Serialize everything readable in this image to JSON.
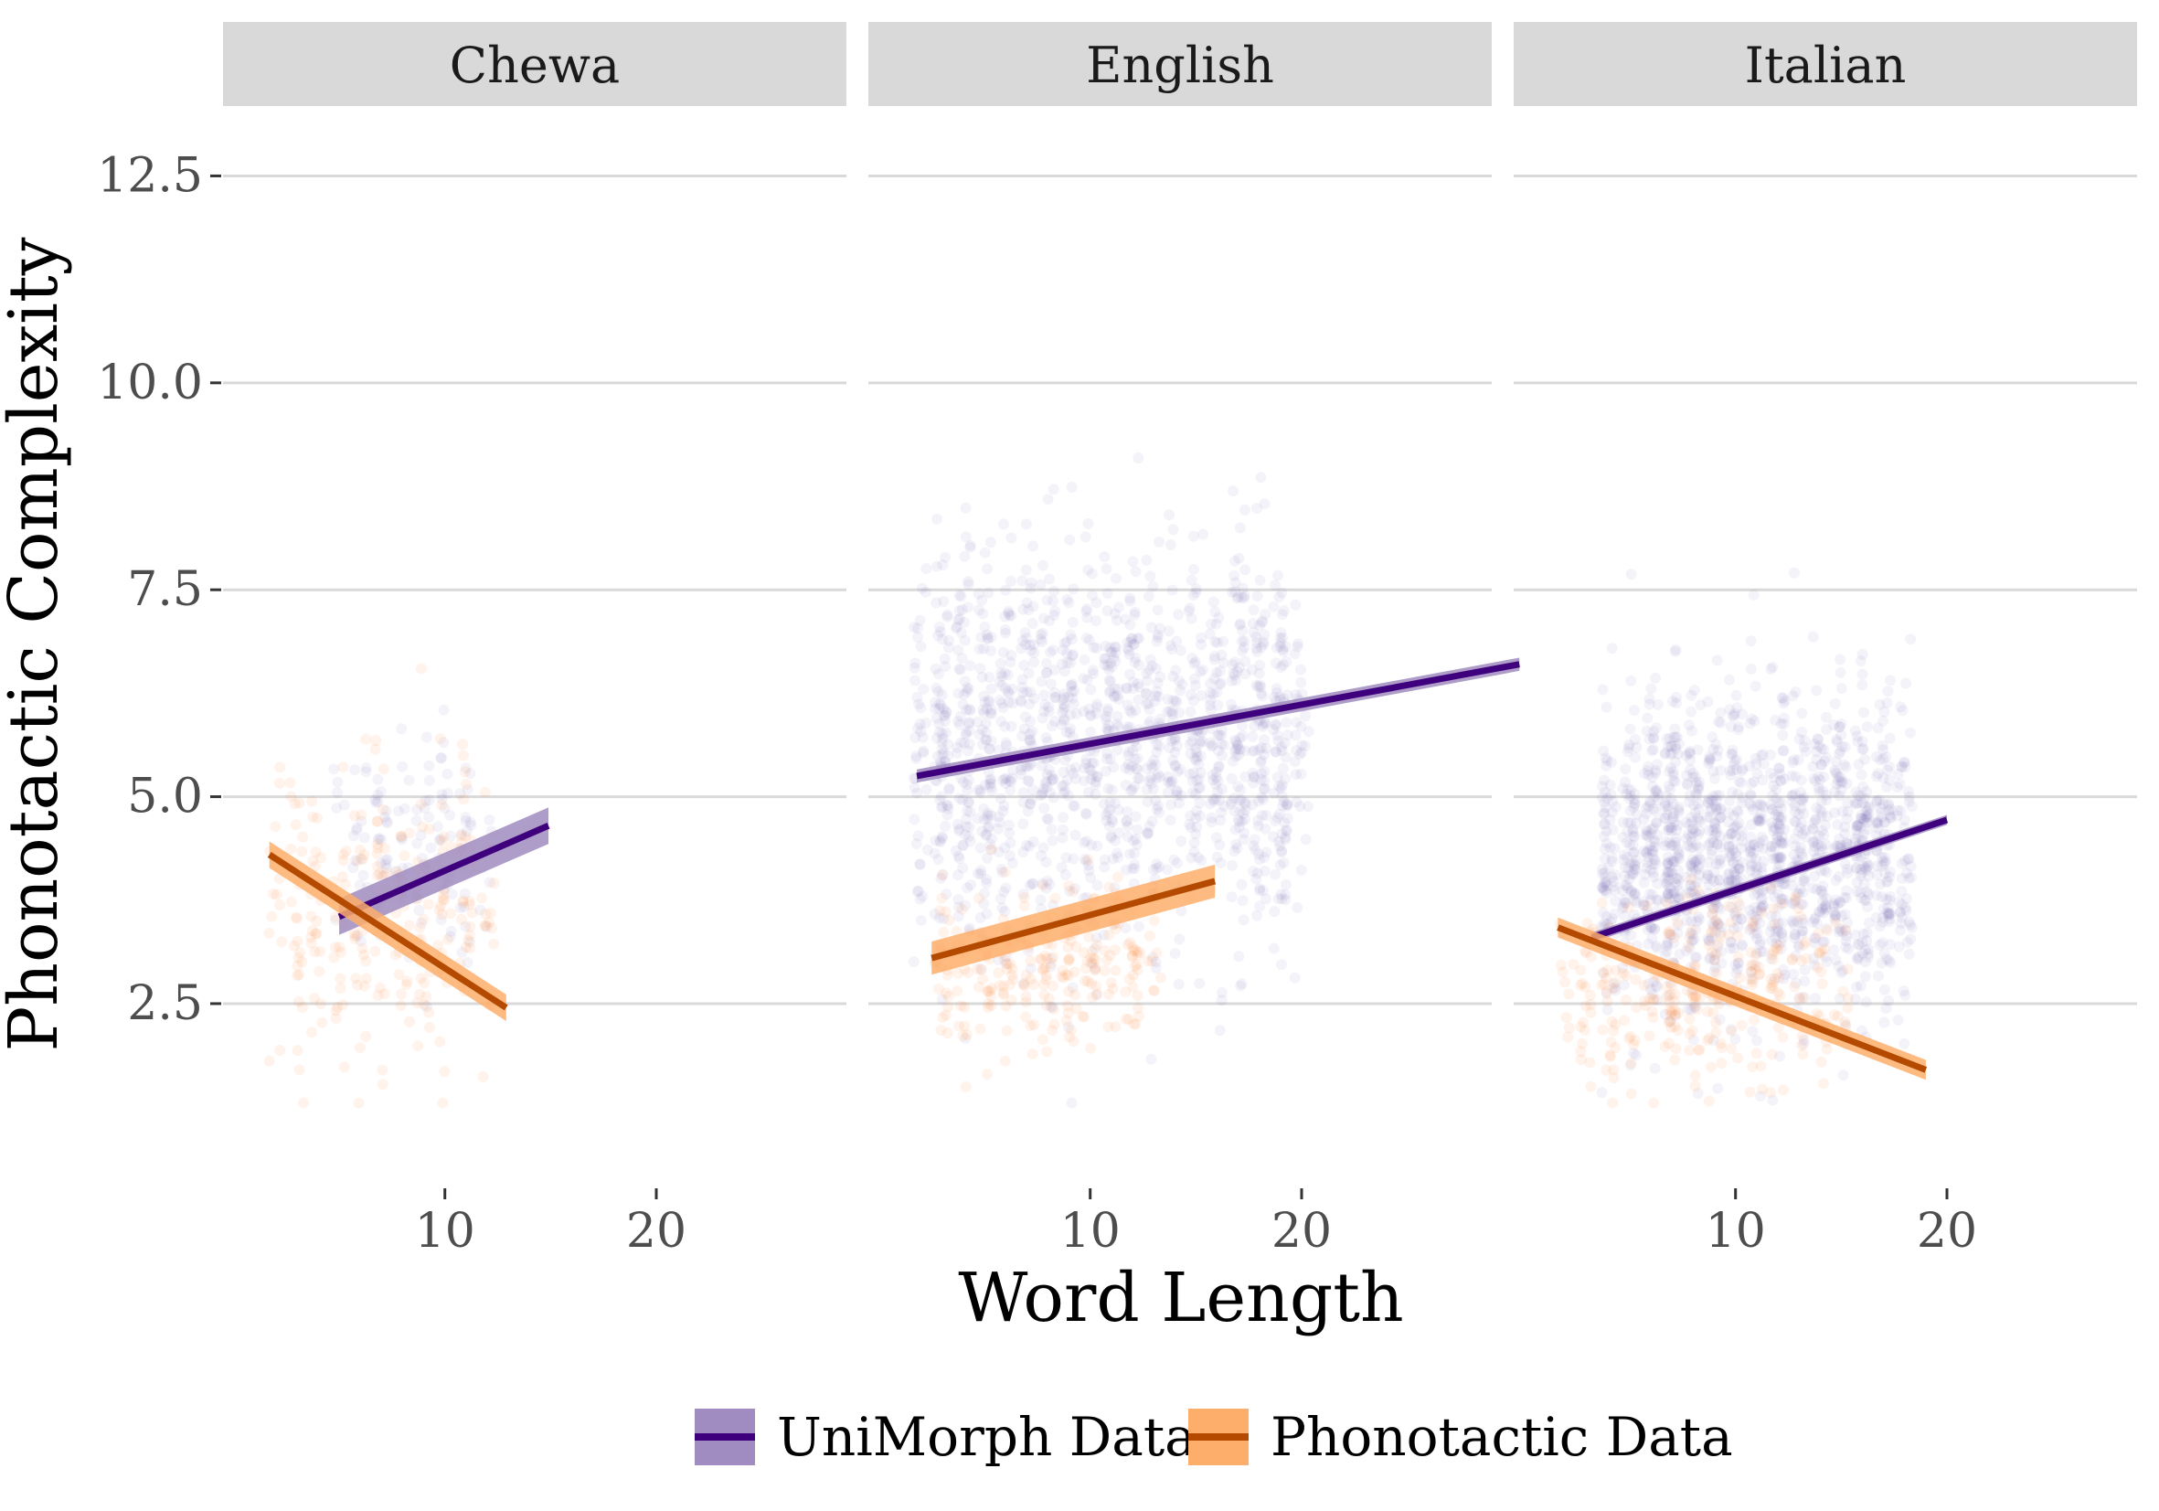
{
  "chart_data": {
    "type": "scatter",
    "xlabel": "Word Length",
    "ylabel": "Phonotactic Complexity",
    "x_ticks": [
      10,
      20
    ],
    "y_ticks": [
      2.5,
      5.0,
      7.5,
      10.0,
      12.5
    ],
    "y_tick_labels": [
      "2.5",
      "5.0",
      "7.5",
      "10.0",
      "12.5"
    ],
    "xlim": [
      0,
      32
    ],
    "ylim": [
      0.6,
      13.3
    ],
    "grid": true,
    "legend_position": "bottom",
    "series": [
      {
        "name": "UniMorph Data",
        "color": "#3f007d",
        "fill": "#a08cc0"
      },
      {
        "name": "Phonotactic Data",
        "color": "#b34a00",
        "fill": "#fdae6b"
      }
    ],
    "panels": [
      {
        "title": "Chewa",
        "clouds": [
          {
            "series": 0,
            "x_range": [
              5,
              12
            ],
            "y_center": 4.3,
            "y_sd": 0.7,
            "count": 140
          },
          {
            "series": 1,
            "x_range": [
              2,
              12
            ],
            "y_center": 3.6,
            "y_sd": 0.9,
            "count": 260
          }
        ],
        "fits": [
          {
            "series": 0,
            "x": [
              5.0,
              14.9
            ],
            "y": [
              3.55,
              4.65
            ],
            "band": 0.22
          },
          {
            "series": 1,
            "x": [
              1.7,
              12.9
            ],
            "y": [
              4.3,
              2.45
            ],
            "band": 0.16
          }
        ]
      },
      {
        "title": "English",
        "clouds": [
          {
            "series": 0,
            "x_range": [
              2,
              20
            ],
            "y_center": 5.6,
            "y_sd": 1.2,
            "count": 1400
          },
          {
            "series": 1,
            "x_range": [
              2.5,
              13
            ],
            "y_center": 3.0,
            "y_sd": 0.5,
            "count": 260
          }
        ],
        "fits": [
          {
            "series": 0,
            "x": [
              1.8,
              30.3
            ],
            "y": [
              5.25,
              6.6
            ],
            "band": 0.08
          },
          {
            "series": 1,
            "x": [
              2.5,
              15.9
            ],
            "y": [
              3.05,
              3.98
            ],
            "band": 0.2
          }
        ]
      },
      {
        "title": "Italian",
        "clouds": [
          {
            "series": 0,
            "x_range": [
              4,
              18
            ],
            "y_center": 4.3,
            "y_sd": 0.95,
            "count": 1500
          },
          {
            "series": 1,
            "x_range": [
              2,
              15
            ],
            "y_center": 2.7,
            "y_sd": 0.55,
            "count": 320
          }
        ],
        "fits": [
          {
            "series": 0,
            "x": [
              3.2,
              20.0
            ],
            "y": [
              3.3,
              4.72
            ],
            "band": 0.06
          },
          {
            "series": 1,
            "x": [
              1.6,
              19.0
            ],
            "y": [
              3.42,
              1.7
            ],
            "band": 0.12
          }
        ]
      }
    ]
  }
}
